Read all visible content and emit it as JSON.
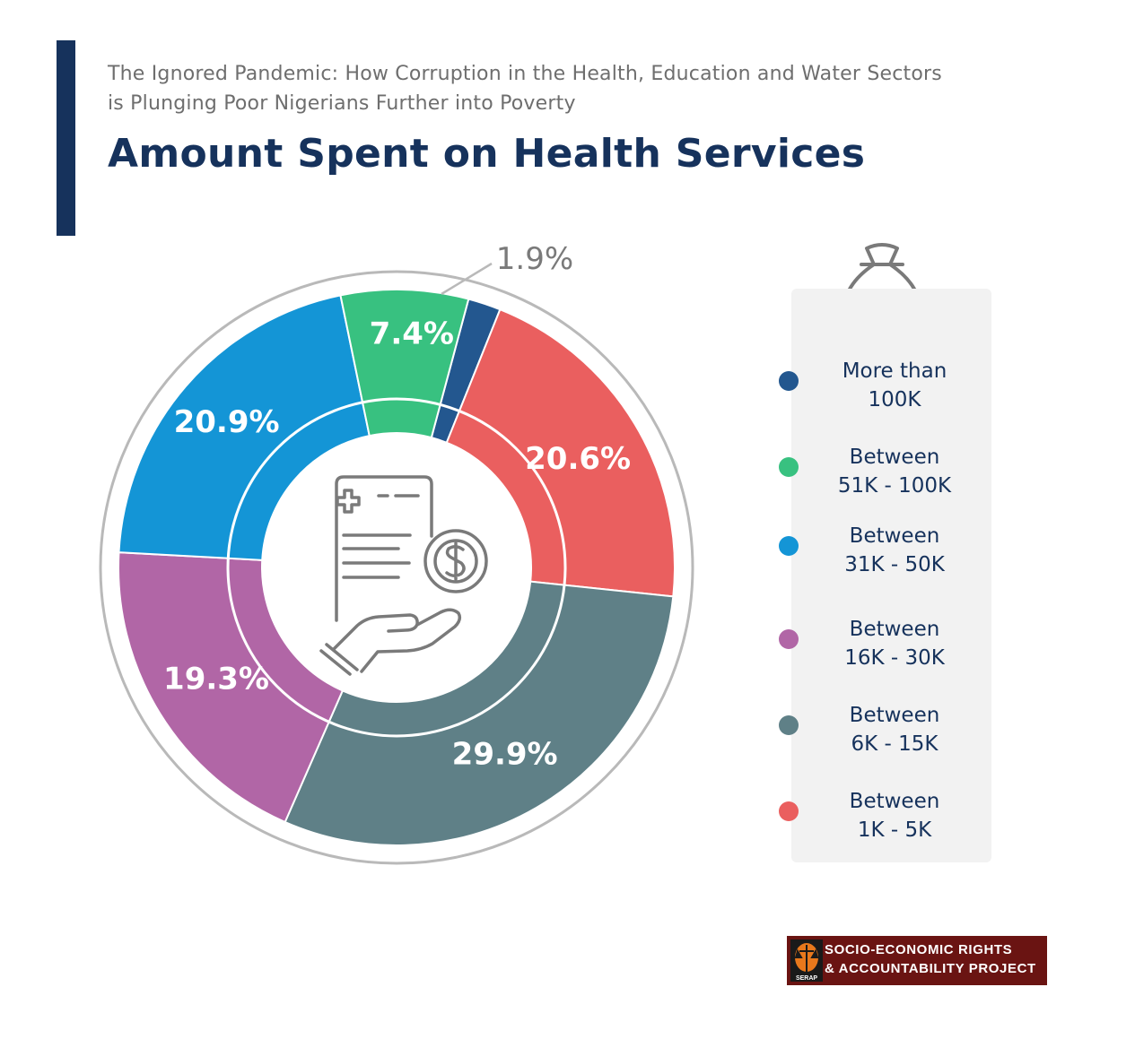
{
  "header": {
    "subtitle_line1": "The Ignored Pandemic: How Corruption in the Health, Education and Water Sectors",
    "subtitle_line2": "is Plunging Poor Nigerians Further into Poverty",
    "title": "Amount Spent on Health Services"
  },
  "colors": {
    "accent": "#16325c",
    "title": "#16325c",
    "subtitle": "#6e6e6e"
  },
  "chart_data": {
    "type": "pie",
    "donut": true,
    "unit": "%",
    "title": "Amount Spent on Health Services",
    "legend_position": "right",
    "slices": [
      {
        "label": "More than 100K",
        "value": 1.9,
        "display": "1.9%",
        "color": "#23578f"
      },
      {
        "label": "Between 1K - 5K",
        "value": 20.6,
        "display": "20.6%",
        "color": "#ea5f5f"
      },
      {
        "label": "Between 6K - 15K",
        "value": 29.9,
        "display": "29.9%",
        "color": "#5f8087"
      },
      {
        "label": "Between 16K - 30K",
        "value": 19.3,
        "display": "19.3%",
        "color": "#b166a6"
      },
      {
        "label": "Between 31K - 50K",
        "value": 20.9,
        "display": "20.9%",
        "color": "#1495d6"
      },
      {
        "label": "Between 51K - 100K",
        "value": 7.4,
        "display": "7.4%",
        "color": "#38c180"
      }
    ]
  },
  "legend": {
    "icon": "naira-money-bag-icon",
    "items": [
      {
        "line1": "More than",
        "line2": "100K",
        "color": "#23578f"
      },
      {
        "line1": "Between",
        "line2": "51K - 100K",
        "color": "#38c180"
      },
      {
        "line1": "Between",
        "line2": "31K - 50K",
        "color": "#1495d6"
      },
      {
        "line1": "Between",
        "line2": "16K - 30K",
        "color": "#b166a6"
      },
      {
        "line1": "Between",
        "line2": "6K - 15K",
        "color": "#5f8087"
      },
      {
        "line1": "Between",
        "line2": "1K - 5K",
        "color": "#ea5f5f"
      }
    ]
  },
  "center_icon": "medical-bill-payment-icon",
  "logo": {
    "line1": "SOCIO-ECONOMIC RIGHTS",
    "line2": "& ACCOUNTABILITY PROJECT",
    "emblem_text": "SERAP",
    "background": "#6a1412"
  }
}
